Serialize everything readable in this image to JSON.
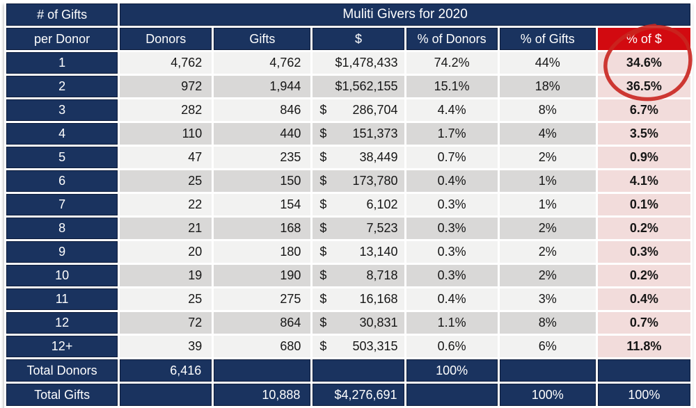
{
  "table": {
    "corner_top": "# of Gifts",
    "corner_bottom": "per Donor",
    "title": "Muliti Givers for 2020",
    "columns": [
      "Donors",
      "Gifts",
      "$",
      "% of Donors",
      "% of Gifts",
      "% of $"
    ],
    "rows": [
      {
        "label": "1",
        "donors": "4,762",
        "gifts": "4,762",
        "currency": "$",
        "amount": "1,478,433",
        "accounting": false,
        "pct_donors": "74.2%",
        "pct_gifts": "44%",
        "pct_dollars": "34.6%"
      },
      {
        "label": "2",
        "donors": "972",
        "gifts": "1,944",
        "currency": "$",
        "amount": "1,562,155",
        "accounting": false,
        "pct_donors": "15.1%",
        "pct_gifts": "18%",
        "pct_dollars": "36.5%"
      },
      {
        "label": "3",
        "donors": "282",
        "gifts": "846",
        "currency": "$",
        "amount": "286,704",
        "accounting": true,
        "pct_donors": "4.4%",
        "pct_gifts": "8%",
        "pct_dollars": "6.7%"
      },
      {
        "label": "4",
        "donors": "110",
        "gifts": "440",
        "currency": "$",
        "amount": "151,373",
        "accounting": true,
        "pct_donors": "1.7%",
        "pct_gifts": "4%",
        "pct_dollars": "3.5%"
      },
      {
        "label": "5",
        "donors": "47",
        "gifts": "235",
        "currency": "$",
        "amount": "38,449",
        "accounting": true,
        "pct_donors": "0.7%",
        "pct_gifts": "2%",
        "pct_dollars": "0.9%"
      },
      {
        "label": "6",
        "donors": "25",
        "gifts": "150",
        "currency": "$",
        "amount": "173,780",
        "accounting": true,
        "pct_donors": "0.4%",
        "pct_gifts": "1%",
        "pct_dollars": "4.1%"
      },
      {
        "label": "7",
        "donors": "22",
        "gifts": "154",
        "currency": "$",
        "amount": "6,102",
        "accounting": true,
        "pct_donors": "0.3%",
        "pct_gifts": "1%",
        "pct_dollars": "0.1%"
      },
      {
        "label": "8",
        "donors": "21",
        "gifts": "168",
        "currency": "$",
        "amount": "7,523",
        "accounting": true,
        "pct_donors": "0.3%",
        "pct_gifts": "2%",
        "pct_dollars": "0.2%"
      },
      {
        "label": "9",
        "donors": "20",
        "gifts": "180",
        "currency": "$",
        "amount": "13,140",
        "accounting": true,
        "pct_donors": "0.3%",
        "pct_gifts": "2%",
        "pct_dollars": "0.3%"
      },
      {
        "label": "10",
        "donors": "19",
        "gifts": "190",
        "currency": "$",
        "amount": "8,718",
        "accounting": true,
        "pct_donors": "0.3%",
        "pct_gifts": "2%",
        "pct_dollars": "0.2%"
      },
      {
        "label": "11",
        "donors": "25",
        "gifts": "275",
        "currency": "$",
        "amount": "16,168",
        "accounting": true,
        "pct_donors": "0.4%",
        "pct_gifts": "3%",
        "pct_dollars": "0.4%"
      },
      {
        "label": "12",
        "donors": "72",
        "gifts": "864",
        "currency": "$",
        "amount": "30,831",
        "accounting": true,
        "pct_donors": "1.1%",
        "pct_gifts": "8%",
        "pct_dollars": "0.7%"
      },
      {
        "label": "12+",
        "donors": "39",
        "gifts": "680",
        "currency": "$",
        "amount": "503,315",
        "accounting": true,
        "pct_donors": "0.6%",
        "pct_gifts": "6%",
        "pct_dollars": "11.8%"
      }
    ],
    "total_rows": [
      {
        "label": "Total Donors",
        "donors": "6,416",
        "gifts": "",
        "currency": "",
        "amount": "",
        "accounting": false,
        "pct_donors": "100%",
        "pct_gifts": "",
        "pct_dollars": ""
      },
      {
        "label": "Total Gifts",
        "donors": "",
        "gifts": "10,888",
        "currency": "$",
        "amount": "4,276,691",
        "accounting": false,
        "pct_donors": "",
        "pct_gifts": "100%",
        "pct_dollars": "100%"
      }
    ]
  },
  "annotation": {
    "type": "hand-drawn-pen-circle",
    "color": "#c9251f",
    "values_circled": [
      "34.6%",
      "36.5%"
    ]
  },
  "colors": {
    "navy": "#1a335f",
    "navy-edge": "#0c1b3a",
    "red": "#d20a10",
    "pink": "#f2dcdb",
    "stripe-light": "#f2f2f1",
    "stripe-dark": "#d9d8d7",
    "ink": "#161616"
  }
}
